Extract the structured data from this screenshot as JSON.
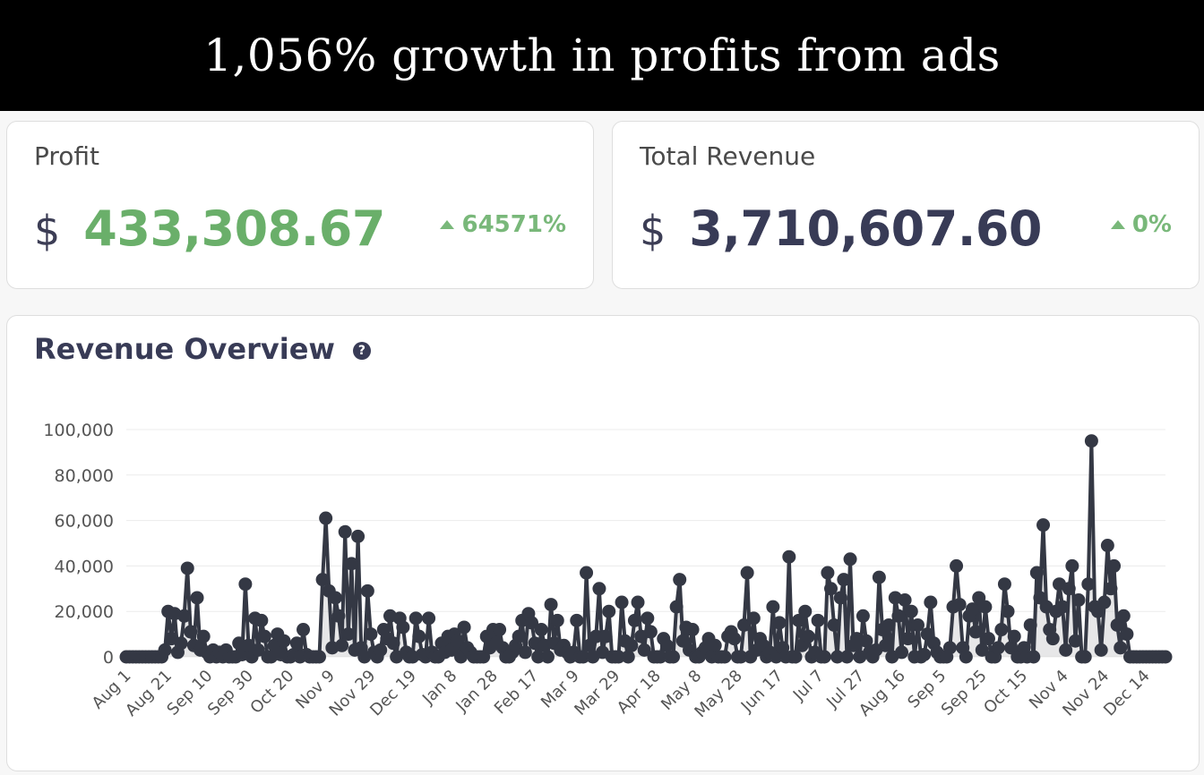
{
  "banner": {
    "title": "1,056% growth in profits from ads"
  },
  "profit_card": {
    "label": "Profit",
    "currency": "$",
    "value": "433,308.67",
    "change": "64571%",
    "value_color": "#6aaf6a"
  },
  "revenue_card": {
    "label": "Total Revenue",
    "currency": "$",
    "value": "3,710,607.60",
    "change": "0%"
  },
  "overview": {
    "title": "Revenue Overview",
    "help_icon": "question-circle-icon"
  },
  "chart_data": {
    "type": "line",
    "title": "Revenue Overview",
    "xlabel": "",
    "ylabel": "",
    "ylim": [
      0,
      100000
    ],
    "yticks": [
      0,
      20000,
      40000,
      60000,
      80000,
      100000
    ],
    "ytick_labels": [
      "0",
      "20,000",
      "40,000",
      "60,000",
      "80,000",
      "100,000"
    ],
    "xtick_labels": [
      "Aug 1",
      "Aug 21",
      "Sep 10",
      "Sep 30",
      "Oct 20",
      "Nov 9",
      "Nov 29",
      "Dec 19",
      "Jan 8",
      "Jan 28",
      "Feb 17",
      "Mar 9",
      "Mar 29",
      "Apr 18",
      "May 8",
      "May 28",
      "Jun 17",
      "Jul 7",
      "Jul 27",
      "Aug 16",
      "Sep 5",
      "Sep 25",
      "Oct 15",
      "Nov 4",
      "Nov 24",
      "Dec 14"
    ],
    "grid": true,
    "line_color": "#343844",
    "series": [
      {
        "name": "Revenue",
        "values": [
          0,
          0,
          0,
          0,
          0,
          0,
          0,
          0,
          0,
          0,
          0,
          0,
          3000,
          20000,
          8000,
          19000,
          2000,
          6000,
          18000,
          39000,
          11000,
          5000,
          26000,
          3000,
          9000,
          2000,
          0,
          3000,
          0,
          2000,
          0,
          3000,
          0,
          0,
          0,
          6000,
          1000,
          32000,
          5000,
          0,
          17000,
          3000,
          16000,
          9000,
          0,
          0,
          5000,
          10000,
          1000,
          7000,
          0,
          0,
          1000,
          6000,
          0,
          12000,
          1000,
          0,
          0,
          0,
          0,
          34000,
          61000,
          29000,
          4000,
          26000,
          18000,
          5000,
          55000,
          10000,
          41000,
          3000,
          53000,
          4000,
          0,
          29000,
          10000,
          2000,
          0,
          3000,
          12000,
          8000,
          18000,
          6000,
          0,
          17000,
          13000,
          2000,
          0,
          0,
          17000,
          9000,
          1000,
          0,
          17000,
          2000,
          0,
          0,
          6000,
          2000,
          9000,
          3000,
          10000,
          7000,
          0,
          13000,
          4000,
          2000,
          0,
          0,
          0,
          0,
          9000,
          4000,
          12000,
          6000,
          12000,
          4000,
          0,
          0,
          2000,
          5000,
          9000,
          16000,
          2000,
          19000,
          15000,
          6000,
          0,
          12000,
          5000,
          0,
          23000,
          6000,
          16000,
          3000,
          5000,
          2000,
          0,
          2000,
          16000,
          0,
          0,
          37000,
          5000,
          0,
          9000,
          30000,
          2000,
          9000,
          20000,
          0,
          0,
          0,
          24000,
          7000,
          0,
          5000,
          16000,
          24000,
          9000,
          3000,
          17000,
          11000,
          0,
          0,
          0,
          8000,
          5000,
          0,
          0,
          22000,
          34000,
          7000,
          13000,
          3000,
          12000,
          0,
          0,
          2000,
          4000,
          8000,
          0,
          5000,
          0,
          0,
          0,
          9000,
          11000,
          8000,
          0,
          0,
          14000,
          37000,
          0,
          17000,
          3000,
          8000,
          5000,
          0,
          2000,
          22000,
          0,
          15000,
          4000,
          0,
          44000,
          0,
          0,
          16000,
          5000,
          20000,
          9000,
          0,
          2000,
          16000,
          0,
          0,
          37000,
          30000,
          14000,
          0,
          26000,
          34000,
          0,
          43000,
          5000,
          8000,
          0,
          18000,
          7000,
          2000,
          0,
          3000,
          35000,
          12000,
          5000,
          14000,
          0,
          26000,
          18000,
          2000,
          25000,
          8000,
          20000,
          0,
          14000,
          0,
          1000,
          10000,
          24000,
          6000,
          2000,
          0,
          0,
          0,
          4000,
          22000,
          40000,
          23000,
          4000,
          0,
          18000,
          21000,
          11000,
          26000,
          3000,
          22000,
          8000,
          0,
          0,
          4000,
          12000,
          32000,
          20000,
          4000,
          9000,
          0,
          0,
          4000,
          0,
          14000,
          0,
          37000,
          26000,
          58000,
          22000,
          12000,
          8000,
          20000,
          32000,
          22000,
          3000,
          30000,
          40000,
          7000,
          25000,
          0,
          0,
          32000,
          95000,
          22000,
          20000,
          3000,
          24000,
          49000,
          30000,
          40000,
          14000,
          4000,
          18000,
          10000,
          0,
          0,
          0,
          0,
          0,
          0,
          0,
          0,
          0,
          0,
          0,
          0
        ]
      }
    ]
  }
}
